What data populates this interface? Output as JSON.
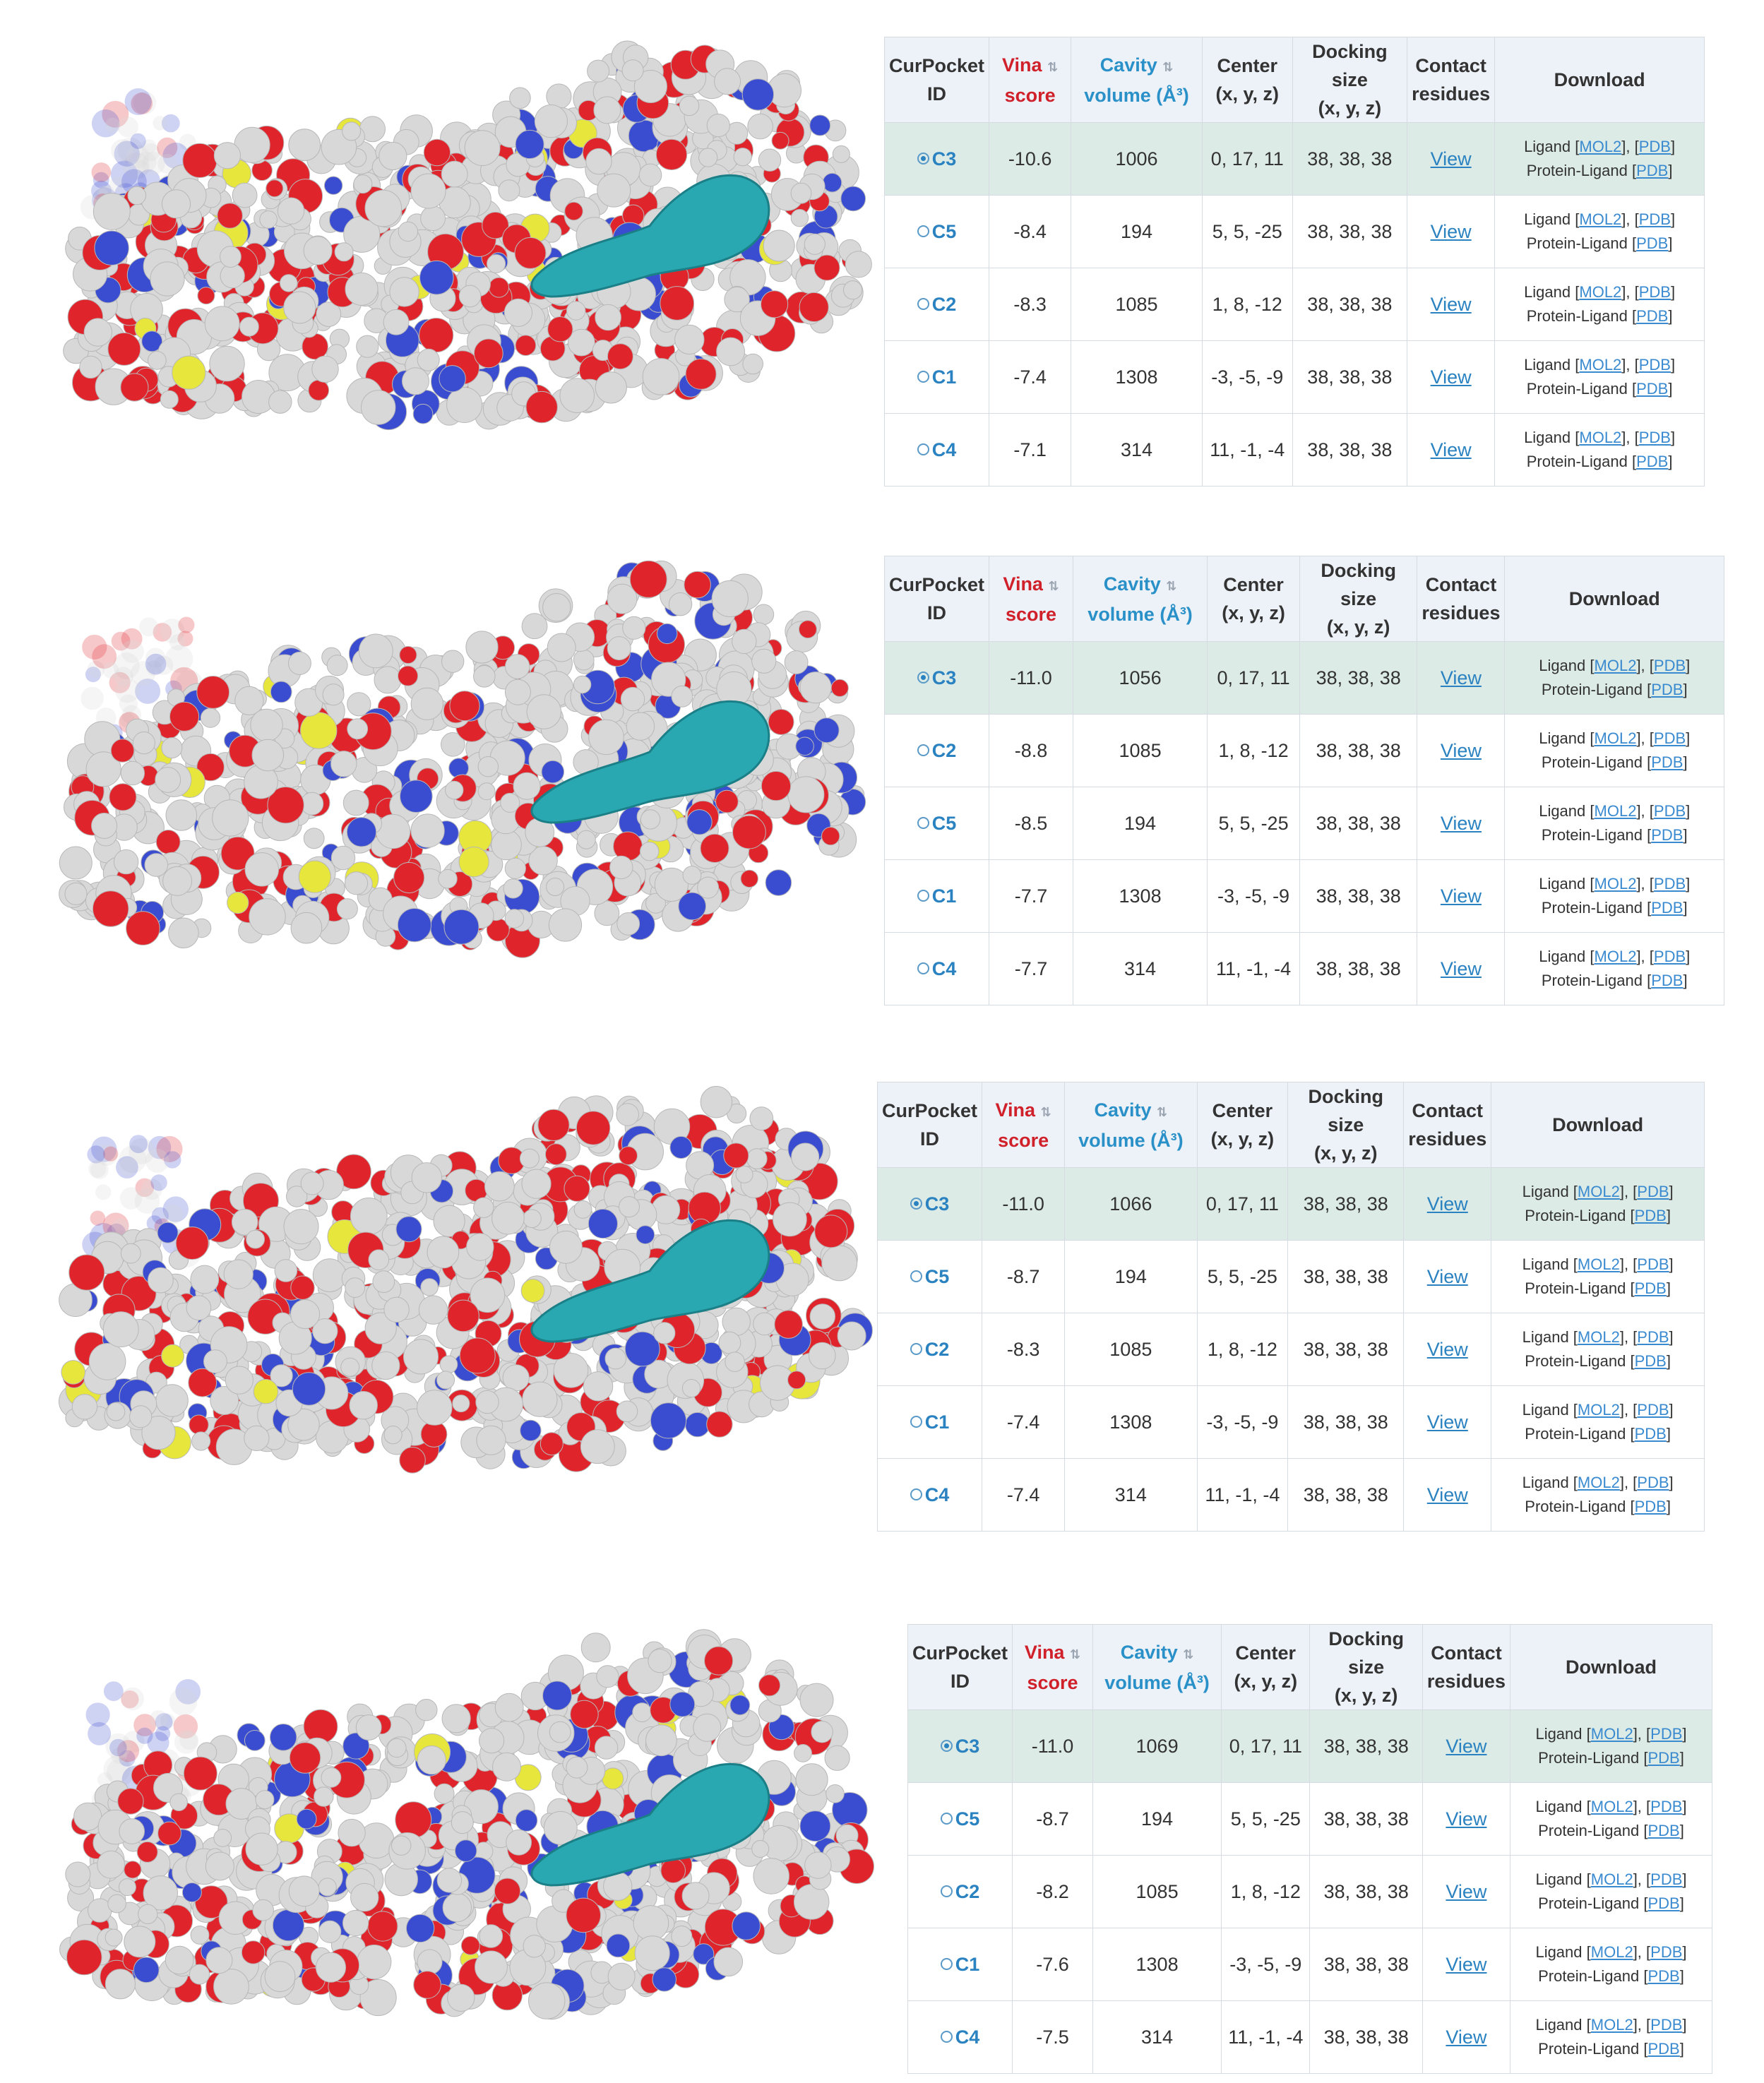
{
  "headers": {
    "id_l1": "CurPocket",
    "id_l2": "ID",
    "vina_l1": "Vina",
    "vina_l2": "score",
    "cavity_l1": "Cavity",
    "cavity_l2": "volume (Å³)",
    "center_l1": "Center",
    "center_l2": "(x, y, z)",
    "dock_l1": "Docking size",
    "dock_l2": "(x, y, z)",
    "contact_l1": "Contact",
    "contact_l2": "residues",
    "download": "Download",
    "sort_icon": "⇅"
  },
  "download": {
    "ligand": "Ligand",
    "protein_ligand": "Protein-Ligand",
    "mol2": "MOL2",
    "pdb": "PDB",
    "view": "View"
  },
  "colors": {
    "pocket": "#2aa8b2",
    "oxygen": "#e0242b",
    "nitrogen": "#3a4cd0",
    "sulfur": "#e6e63c",
    "carbon": "#d8d8d8"
  },
  "panels": [
    {
      "rows": [
        {
          "id": "C3",
          "vina": "-10.6",
          "vol": "1006",
          "center": "0, 17, 11",
          "size": "38, 38, 38",
          "selected": true
        },
        {
          "id": "C5",
          "vina": "-8.4",
          "vol": "194",
          "center": "5, 5, -25",
          "size": "38, 38, 38"
        },
        {
          "id": "C2",
          "vina": "-8.3",
          "vol": "1085",
          "center": "1, 8, -12",
          "size": "38, 38, 38"
        },
        {
          "id": "C1",
          "vina": "-7.4",
          "vol": "1308",
          "center": "-3, -5, -9",
          "size": "38, 38, 38"
        },
        {
          "id": "C4",
          "vina": "-7.1",
          "vol": "314",
          "center": "11, -1, -4",
          "size": "38, 38, 38"
        }
      ]
    },
    {
      "rows": [
        {
          "id": "C3",
          "vina": "-11.0",
          "vol": "1056",
          "center": "0, 17, 11",
          "size": "38, 38, 38",
          "selected": true
        },
        {
          "id": "C2",
          "vina": "-8.8",
          "vol": "1085",
          "center": "1, 8, -12",
          "size": "38, 38, 38"
        },
        {
          "id": "C5",
          "vina": "-8.5",
          "vol": "194",
          "center": "5, 5, -25",
          "size": "38, 38, 38"
        },
        {
          "id": "C1",
          "vina": "-7.7",
          "vol": "1308",
          "center": "-3, -5, -9",
          "size": "38, 38, 38"
        },
        {
          "id": "C4",
          "vina": "-7.7",
          "vol": "314",
          "center": "11, -1, -4",
          "size": "38, 38, 38"
        }
      ]
    },
    {
      "rows": [
        {
          "id": "C3",
          "vina": "-11.0",
          "vol": "1066",
          "center": "0, 17, 11",
          "size": "38, 38, 38",
          "selected": true
        },
        {
          "id": "C5",
          "vina": "-8.7",
          "vol": "194",
          "center": "5, 5, -25",
          "size": "38, 38, 38"
        },
        {
          "id": "C2",
          "vina": "-8.3",
          "vol": "1085",
          "center": "1, 8, -12",
          "size": "38, 38, 38"
        },
        {
          "id": "C1",
          "vina": "-7.4",
          "vol": "1308",
          "center": "-3, -5, -9",
          "size": "38, 38, 38"
        },
        {
          "id": "C4",
          "vina": "-7.4",
          "vol": "314",
          "center": "11, -1, -4",
          "size": "38, 38, 38"
        }
      ]
    },
    {
      "rows": [
        {
          "id": "C3",
          "vina": "-11.0",
          "vol": "1069",
          "center": "0, 17, 11",
          "size": "38, 38, 38",
          "selected": true
        },
        {
          "id": "C5",
          "vina": "-8.7",
          "vol": "194",
          "center": "5, 5, -25",
          "size": "38, 38, 38"
        },
        {
          "id": "C2",
          "vina": "-8.2",
          "vol": "1085",
          "center": "1, 8, -12",
          "size": "38, 38, 38"
        },
        {
          "id": "C1",
          "vina": "-7.6",
          "vol": "1308",
          "center": "-3, -5, -9",
          "size": "38, 38, 38"
        },
        {
          "id": "C4",
          "vina": "-7.5",
          "vol": "314",
          "center": "11, -1, -4",
          "size": "38, 38, 38"
        }
      ]
    }
  ]
}
